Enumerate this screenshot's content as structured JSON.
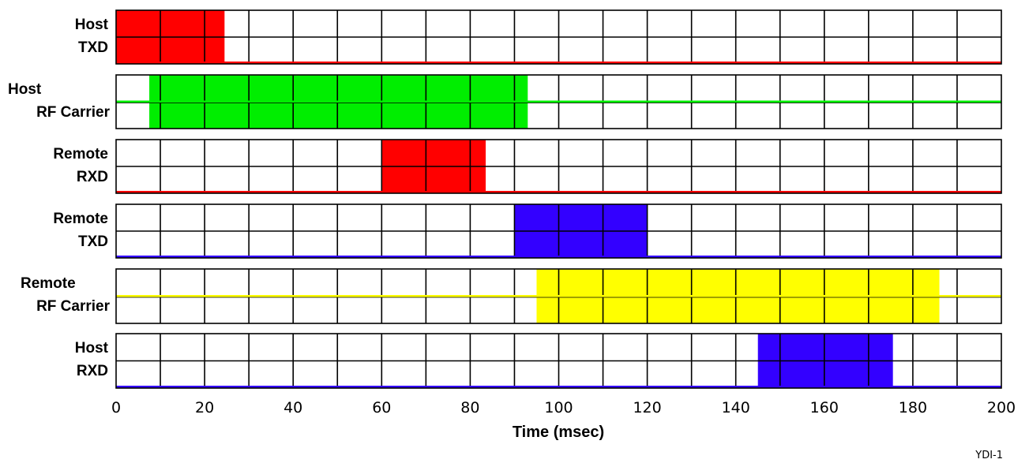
{
  "chart_data": {
    "type": "timing-diagram",
    "xlabel": "Time (msec)",
    "xlim": [
      0,
      200
    ],
    "x_ticks": [
      0,
      20,
      40,
      60,
      80,
      100,
      120,
      140,
      160,
      180,
      200
    ],
    "grid_step": 10,
    "tracks": [
      {
        "label_lines": [
          "Host",
          "TXD"
        ],
        "color": "#ff0000",
        "baseline": "bottom",
        "start": 0,
        "end": 24.5
      },
      {
        "label_lines": [
          "Host",
          "RF Carrier"
        ],
        "color": "#00ee00",
        "baseline": "middle",
        "start": 7.5,
        "end": 93
      },
      {
        "label_lines": [
          "Remote",
          "RXD"
        ],
        "color": "#ff0000",
        "baseline": "bottom",
        "start": 60,
        "end": 83.5
      },
      {
        "label_lines": [
          "Remote",
          "TXD"
        ],
        "color": "#3300ff",
        "baseline": "bottom",
        "start": 90,
        "end": 120
      },
      {
        "label_lines": [
          "Remote",
          "RF Carrier"
        ],
        "color": "#ffff00",
        "baseline": "middle",
        "start": 95,
        "end": 186
      },
      {
        "label_lines": [
          "Host",
          "RXD"
        ],
        "color": "#3300ff",
        "baseline": "bottom",
        "start": 145,
        "end": 175.5
      }
    ]
  },
  "figure_id": "YDI-1"
}
